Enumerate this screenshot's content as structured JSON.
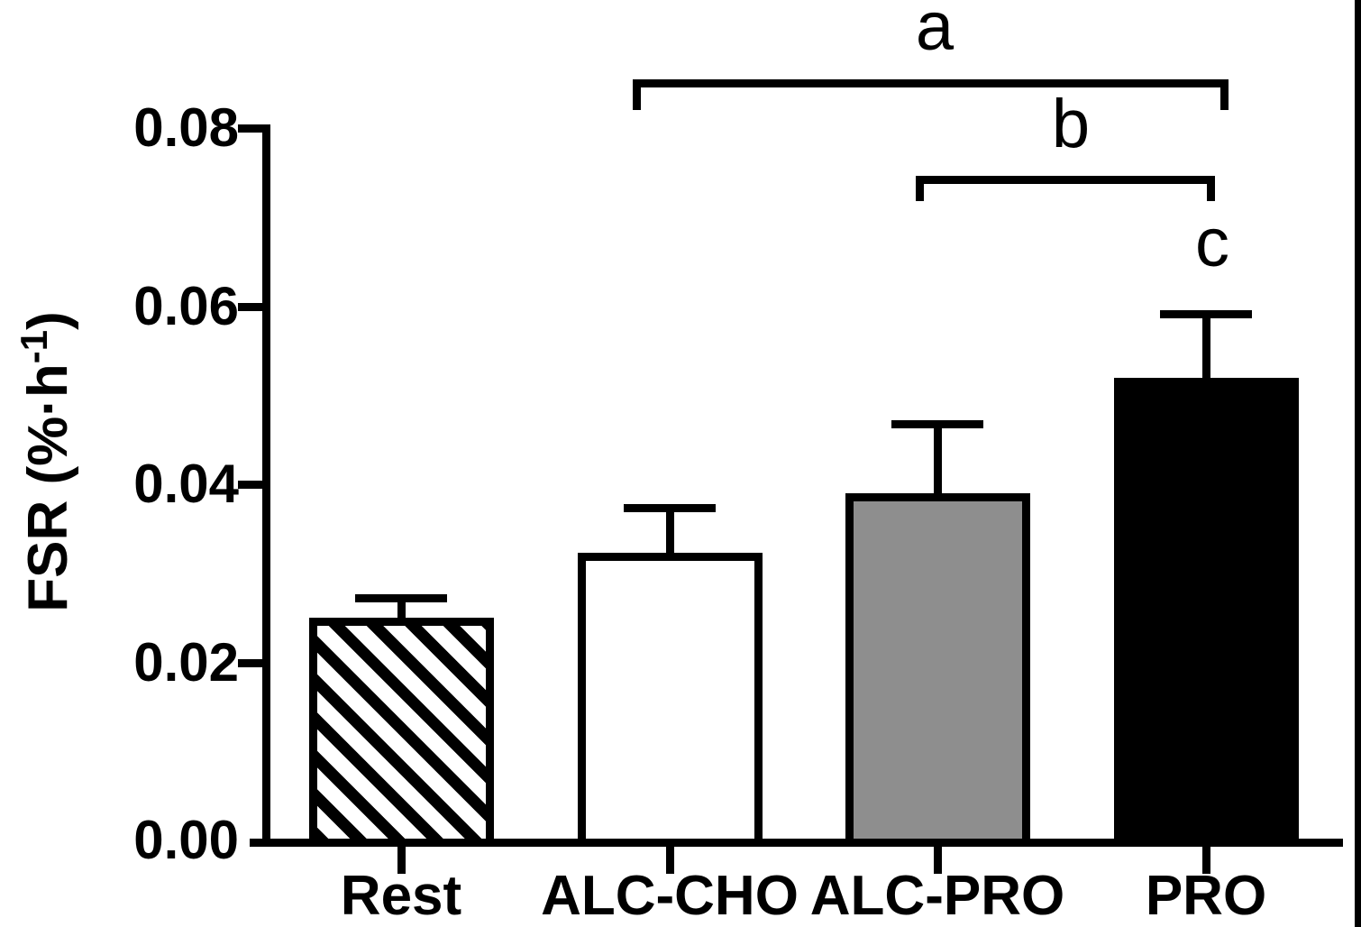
{
  "y_axis": {
    "label_prefix": "FSR (%·h",
    "label_superscript": "-1",
    "label_suffix": ")",
    "tick_labels": [
      "0.08",
      "0.06",
      "0.04",
      "0.02",
      "0.00"
    ]
  },
  "x_axis": {
    "categories": [
      "Rest",
      "ALC-CHO",
      "ALC-PRO",
      "PRO"
    ]
  },
  "annotations": {
    "bracket_a_label": "a",
    "bracket_b_label": "b",
    "letter_c_label": "c"
  },
  "colors": {
    "ink": "#000000",
    "background": "#ffffff",
    "bar_gray": "#8e8e8e"
  },
  "chart_data": {
    "type": "bar",
    "title": "",
    "xlabel": "",
    "ylabel": "FSR (%·h⁻¹)",
    "categories": [
      "Rest",
      "ALC-CHO",
      "ALC-PRO",
      "PRO"
    ],
    "values": [
      0.025,
      0.0323,
      0.039,
      0.0519
    ],
    "errors_plus": [
      0.0022,
      0.0051,
      0.0078,
      0.0072
    ],
    "error_bar_tops": [
      0.0272,
      0.0374,
      0.0468,
      0.0591
    ],
    "bar_styles": [
      "diagonal-hatch",
      "white",
      "gray",
      "black"
    ],
    "ylim": [
      0,
      0.08
    ],
    "yticks": [
      0.0,
      0.02,
      0.04,
      0.06,
      0.08
    ],
    "grid": false,
    "legend": false,
    "significance_brackets": [
      {
        "label": "a",
        "from": "ALC-CHO",
        "to": "PRO"
      },
      {
        "label": "b",
        "from": "ALC-PRO",
        "to": "PRO"
      }
    ],
    "significance_letters": [
      {
        "label": "c",
        "above": "PRO"
      }
    ]
  }
}
